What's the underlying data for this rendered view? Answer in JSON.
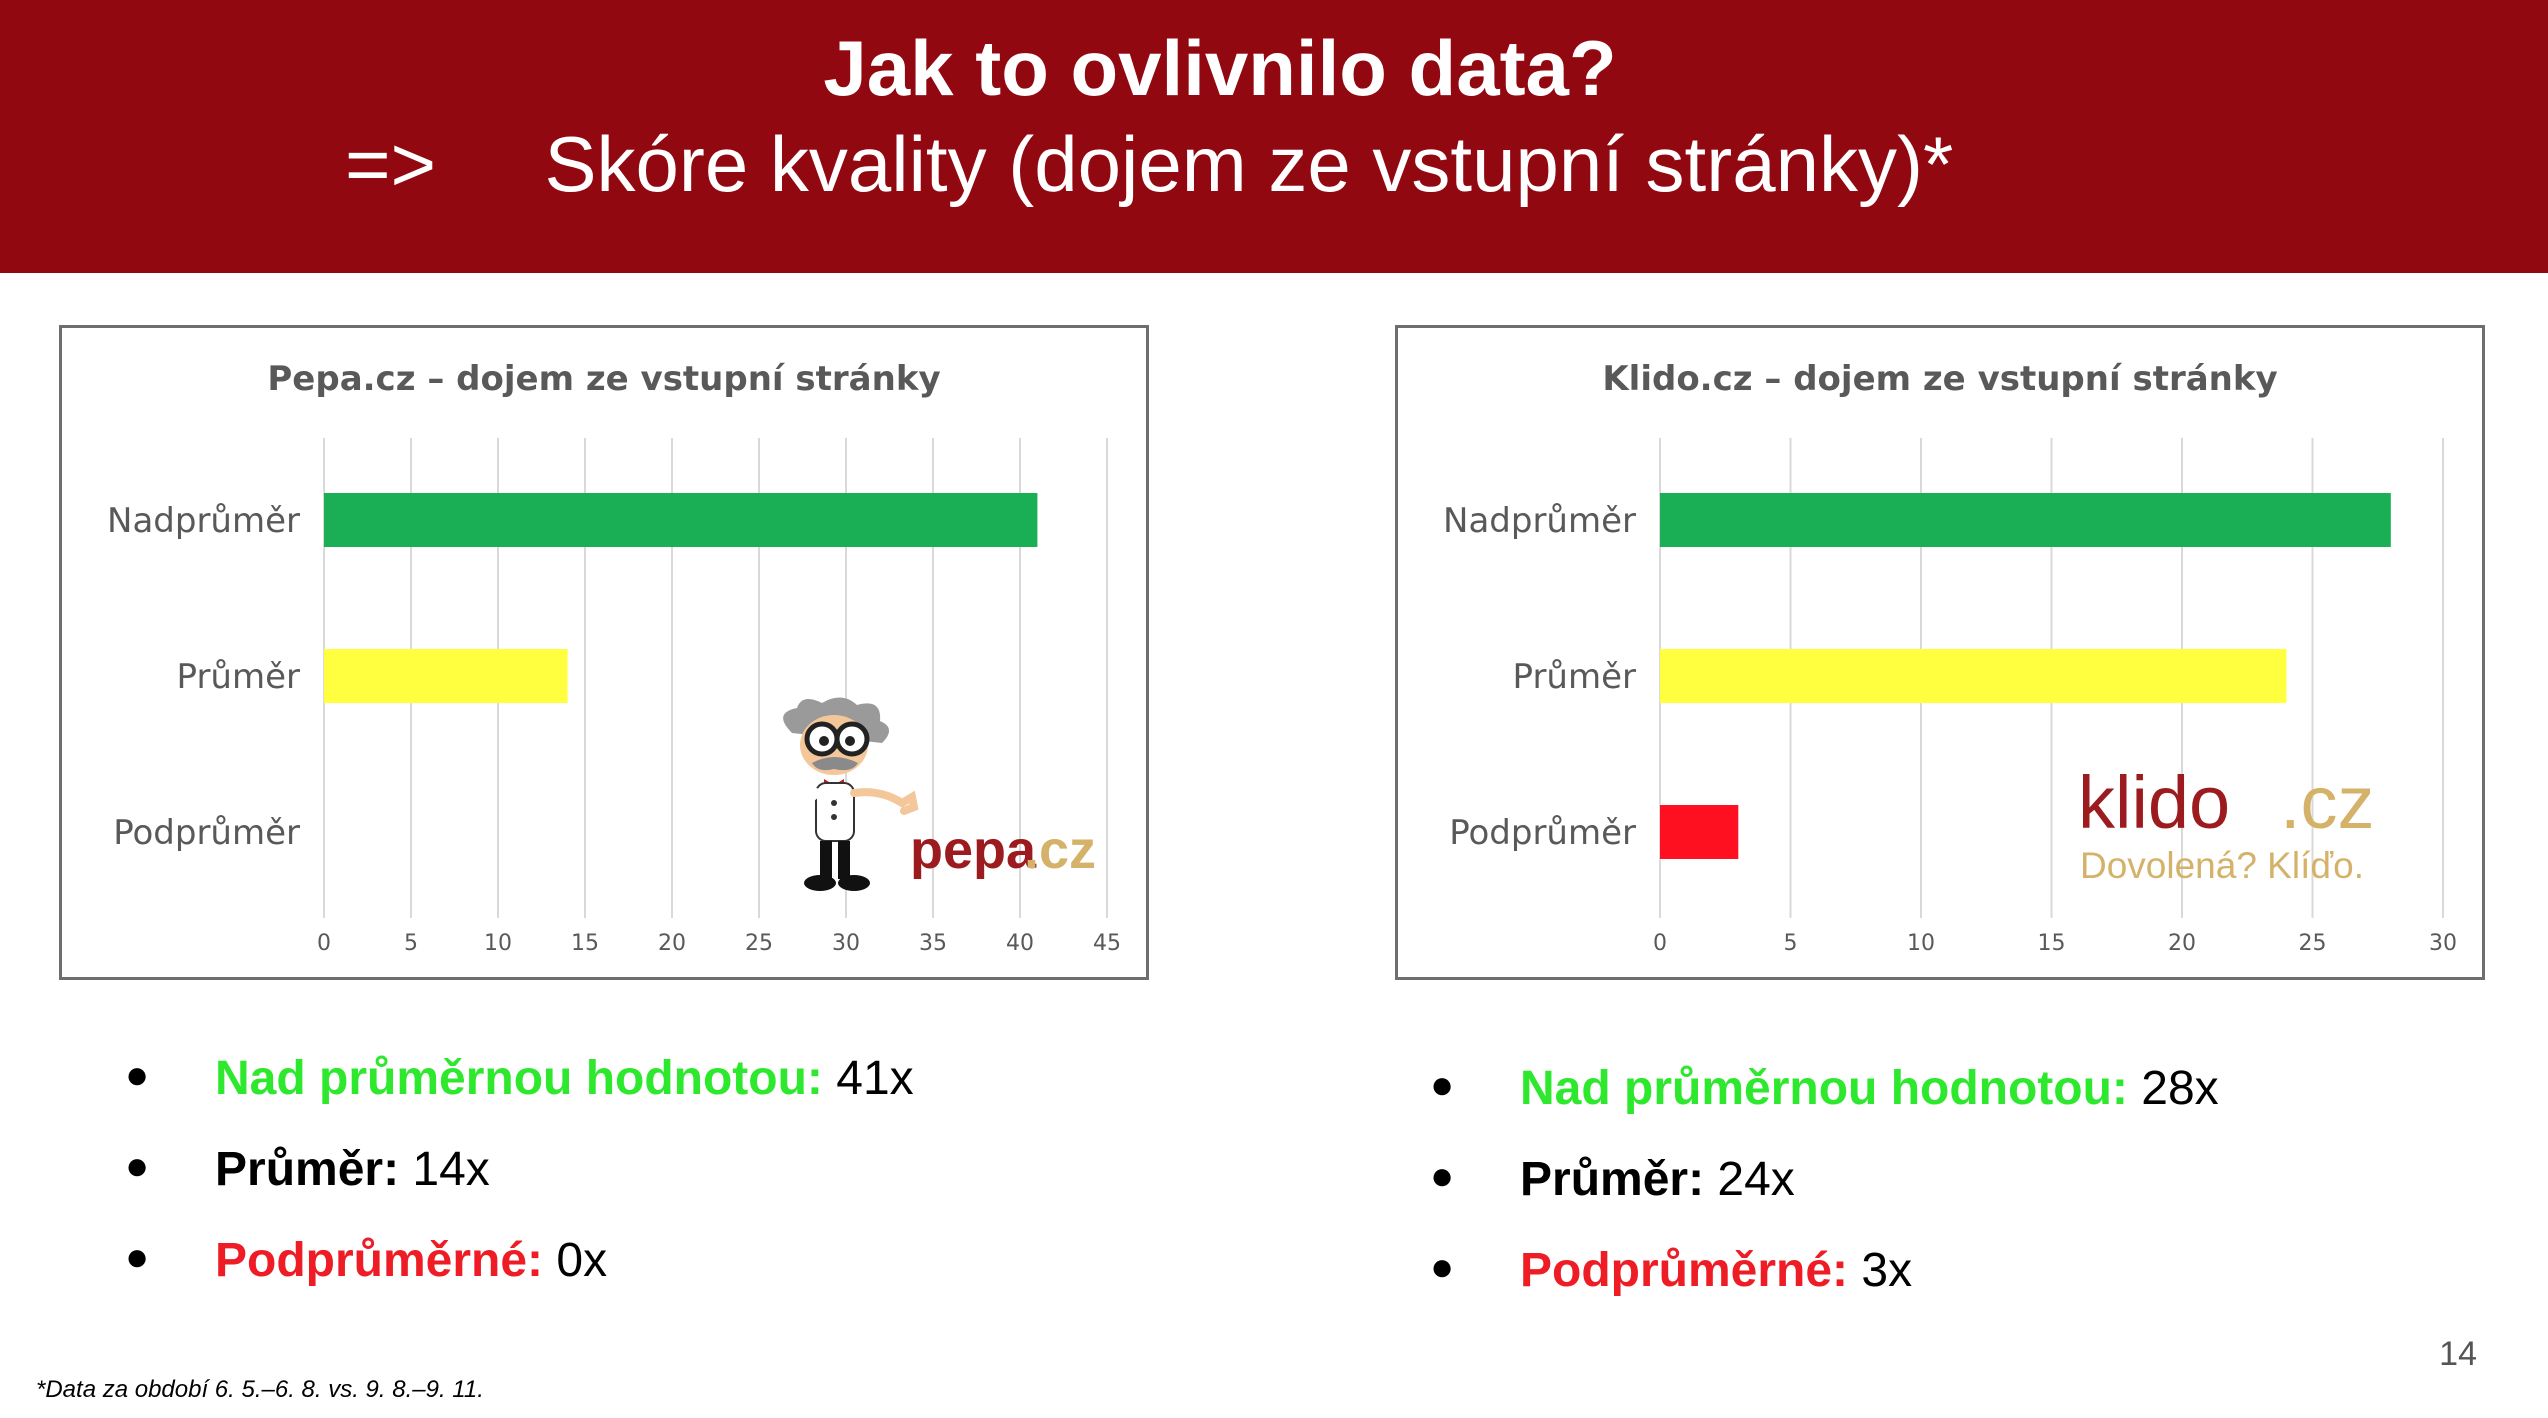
{
  "header": {
    "title": "Jak to ovlivnilo data?",
    "subtitle": "=>     Skóre kvality (dojem ze vstupní stránky)*",
    "background": "#920811"
  },
  "chart_data": [
    {
      "type": "bar",
      "orientation": "horizontal",
      "title": "Pepa.cz – dojem ze vstupní stránky",
      "categories": [
        "Nadprůměr",
        "Průměr",
        "Podprůměr"
      ],
      "values": [
        41,
        14,
        0
      ],
      "colors": [
        "#1aaf54",
        "#ffff40",
        "#ff1020"
      ],
      "xlim": [
        0,
        45
      ],
      "xticks": [
        0,
        5,
        10,
        15,
        20,
        25,
        30,
        35,
        40,
        45
      ],
      "grid": true
    },
    {
      "type": "bar",
      "orientation": "horizontal",
      "title": "Klido.cz – dojem ze vstupní stránky",
      "categories": [
        "Nadprůměr",
        "Průměr",
        "Podprůměr"
      ],
      "values": [
        28,
        24,
        3
      ],
      "colors": [
        "#1aaf54",
        "#ffff40",
        "#ff1020"
      ],
      "xlim": [
        0,
        30
      ],
      "xticks": [
        0,
        5,
        10,
        15,
        20,
        25,
        30
      ],
      "grid": true
    }
  ],
  "logos": {
    "pepa": {
      "name": "pepa",
      "suffix": ".cz"
    },
    "klido": {
      "name": "klido",
      "suffix": ".cz",
      "tagline": "Dovolená? Klíďo."
    }
  },
  "bullets_left": [
    {
      "label": "Nad průměrnou hodnotou:",
      "value": " 41x"
    },
    {
      "label": "Průměr:",
      "value": " 14x"
    },
    {
      "label": "Podprůměrné:",
      "value": " 0x"
    }
  ],
  "bullets_right": [
    {
      "label": "Nad průměrnou hodnotou:",
      "value": " 28x"
    },
    {
      "label": "Průměr:",
      "value": " 24x"
    },
    {
      "label": "Podprůměrné:",
      "value": " 3x"
    }
  ],
  "bullet_symbol": "●",
  "page_number": "14",
  "footnote": "*Data za období 6. 5.–6. 8. vs. 9. 8.–9. 11."
}
